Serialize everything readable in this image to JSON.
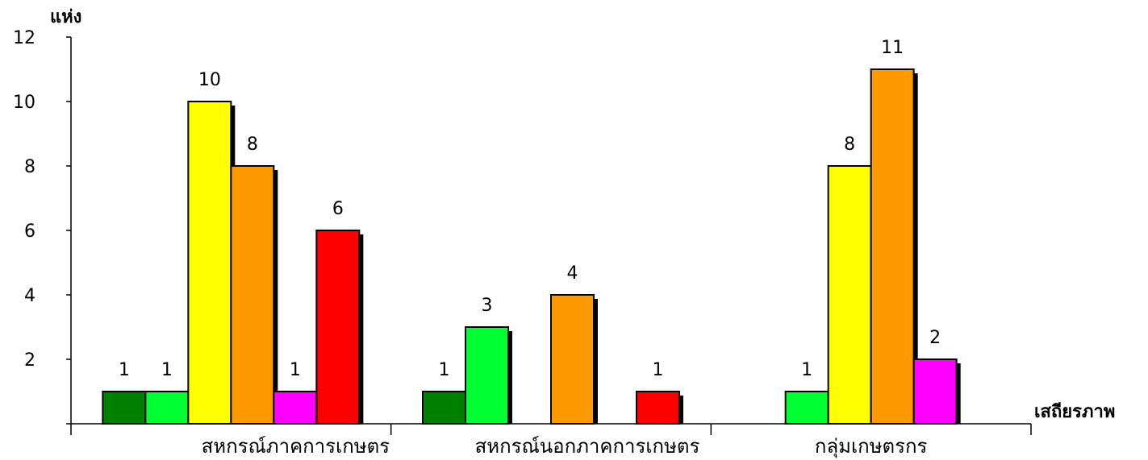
{
  "chart_data": {
    "type": "bar",
    "title": "",
    "ylabel": "แห่ง",
    "xlabel": "เสถียรภาพ",
    "ylim": [
      0,
      12
    ],
    "yticks": [
      2,
      4,
      6,
      8,
      10,
      12
    ],
    "grid": false,
    "legend": "none",
    "categories": [
      "สหกรณ์ภาคการเกษตร",
      "สหกรณ์นอกภาคการเกษตร",
      "กลุ่มเกษตรกร"
    ],
    "series": [
      {
        "color": "#008000",
        "values": [
          1,
          1,
          0
        ]
      },
      {
        "color": "#00ff33",
        "values": [
          1,
          3,
          1
        ]
      },
      {
        "color": "#ffff00",
        "values": [
          10,
          0,
          8
        ]
      },
      {
        "color": "#ff9900",
        "values": [
          8,
          4,
          11
        ]
      },
      {
        "color": "#ff00ff",
        "values": [
          1,
          0,
          2
        ]
      },
      {
        "color": "#ff0000",
        "values": [
          6,
          1,
          0
        ]
      }
    ]
  }
}
